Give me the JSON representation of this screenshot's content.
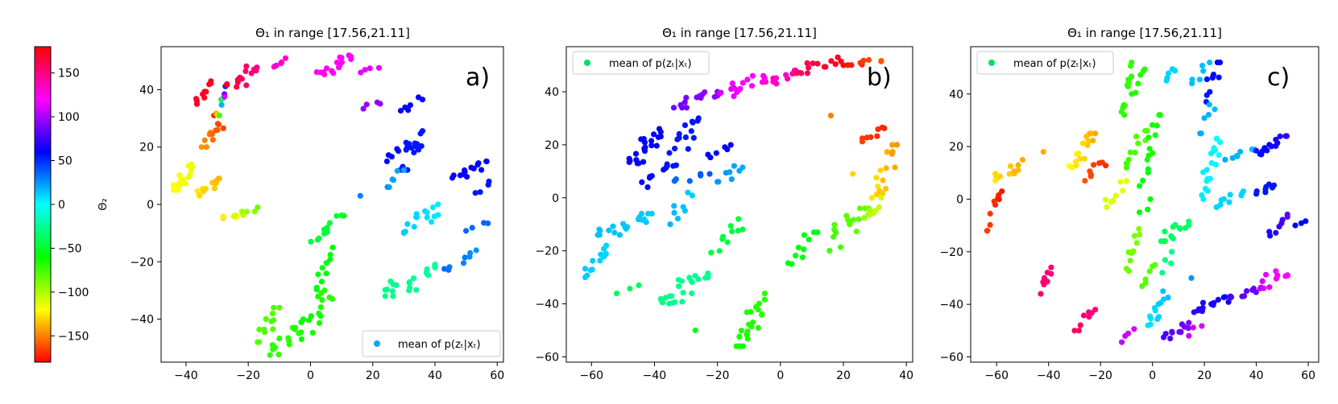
{
  "colorbar": {
    "label": "Θ₂",
    "min": -180,
    "max": 180,
    "ticks": [
      150,
      100,
      50,
      0,
      -50,
      -100,
      -150
    ],
    "tick_labels": [
      "150",
      "100",
      "50",
      "0",
      "−50",
      "−100",
      "−150"
    ],
    "colormap": "hsv"
  },
  "chart_data": [
    {
      "type": "scatter",
      "title_main": "Θ₁ in range [17.56,21.11]",
      "panel_label": "a)",
      "legend": "mean of p(zₜ|xₜ)",
      "legend_position": "bottom-right",
      "legend_color": "#00a8ff",
      "xlim": [
        -48,
        62
      ],
      "ylim": [
        -55,
        55
      ],
      "xticks": [
        -40,
        -20,
        0,
        20,
        40,
        60
      ],
      "xtick_labels": [
        "−40",
        "−20",
        "0",
        "20",
        "40",
        "60"
      ],
      "yticks": [
        -40,
        -20,
        0,
        20,
        40
      ],
      "ytick_labels": [
        "−40",
        "−20",
        "0",
        "20",
        "40"
      ],
      "clusters": [
        {
          "x0": -44,
          "x1": -38,
          "y0": 5,
          "y1": 14,
          "c0": -120,
          "c1": -115,
          "n": 16
        },
        {
          "x0": -38,
          "x1": -28,
          "y0": 3,
          "y1": 9,
          "c0": -125,
          "c1": -138,
          "n": 12
        },
        {
          "x0": -28,
          "x1": -17,
          "y0": -5,
          "y1": -1,
          "c0": -128,
          "c1": -85,
          "n": 10
        },
        {
          "x0": -35,
          "x1": -28,
          "y0": 20,
          "y1": 29,
          "c0": -145,
          "c1": -165,
          "n": 12
        },
        {
          "x0": -31,
          "x1": -26,
          "y0": 31,
          "y1": 42,
          "c0": -172,
          "c1": 178,
          "n": 12
        },
        {
          "x0": -37,
          "x1": -32,
          "y0": 35,
          "y1": 43,
          "c0": 172,
          "c1": 172,
          "n": 10
        },
        {
          "x0": -25,
          "x1": -16,
          "y0": 41,
          "y1": 49,
          "c0": 165,
          "c1": 148,
          "n": 12
        },
        {
          "x0": -12,
          "x1": -8,
          "y0": 48,
          "y1": 51,
          "c0": 132,
          "c1": 132,
          "n": 5
        },
        {
          "x0": 2,
          "x1": 13,
          "y0": 45,
          "y1": 52,
          "c0": 125,
          "c1": 118,
          "n": 16
        },
        {
          "x0": 16,
          "x1": 22,
          "y0": 46,
          "y1": 48,
          "c0": 115,
          "c1": 115,
          "n": 4
        },
        {
          "x0": 17,
          "x1": 23,
          "y0": 33,
          "y1": 36,
          "c0": 95,
          "c1": 95,
          "n": 4
        },
        {
          "x0": 29,
          "x1": 36,
          "y0": 31,
          "y1": 38,
          "c0": 62,
          "c1": 62,
          "n": 6
        },
        {
          "x0": 29,
          "x1": 36,
          "y0": 12,
          "y1": 26,
          "c0": 55,
          "c1": 55,
          "n": 18
        },
        {
          "x0": 24,
          "x1": 29,
          "y0": 15,
          "y1": 20,
          "c0": 58,
          "c1": 58,
          "n": 5
        },
        {
          "x0": 24,
          "x1": 30,
          "y0": 6,
          "y1": 12,
          "c0": 25,
          "c1": 20,
          "n": 6
        },
        {
          "x0": 30,
          "x1": 41,
          "y0": -10,
          "y1": 0,
          "c0": 12,
          "c1": 5,
          "n": 16
        },
        {
          "x0": 45,
          "x1": 57,
          "y0": 9,
          "y1": 15,
          "c0": 62,
          "c1": 60,
          "n": 14
        },
        {
          "x0": 53,
          "x1": 58,
          "y0": 4,
          "y1": 8,
          "c0": 55,
          "c1": 55,
          "n": 4
        },
        {
          "x0": 50,
          "x1": 57,
          "y0": -10,
          "y1": -6,
          "c0": 35,
          "c1": 35,
          "n": 4
        },
        {
          "x0": 43,
          "x1": 54,
          "y0": -23,
          "y1": -16,
          "c0": 35,
          "c1": 25,
          "n": 8
        },
        {
          "x0": 24,
          "x1": 40,
          "y0": -32,
          "y1": -21,
          "c0": -28,
          "c1": -22,
          "n": 22
        },
        {
          "x0": 0,
          "x1": 11,
          "y0": -13,
          "y1": -3,
          "c0": -45,
          "c1": -50,
          "n": 12
        },
        {
          "x0": 2,
          "x1": 8,
          "y0": -30,
          "y1": -15,
          "c0": -55,
          "c1": -60,
          "n": 10
        },
        {
          "x0": -3,
          "x1": 7,
          "y0": -47,
          "y1": -30,
          "c0": -60,
          "c1": -70,
          "n": 16
        },
        {
          "x0": -17,
          "x1": -10,
          "y0": -48,
          "y1": -36,
          "c0": -80,
          "c1": -78,
          "n": 12
        },
        {
          "x0": -13,
          "x1": -3,
          "y0": -53,
          "y1": -43,
          "c0": -72,
          "c1": -68,
          "n": 14
        },
        {
          "x0": 16,
          "x1": 16,
          "y0": 3,
          "y1": 3,
          "c0": 30,
          "c1": 30,
          "n": 1
        }
      ]
    },
    {
      "type": "scatter",
      "title_main": "Θ₁ in range [17.56,21.11]",
      "panel_label": "b)",
      "legend": "mean of p(zₜ|xₜ)",
      "legend_position": "top-left",
      "legend_color": "#00e060",
      "xlim": [
        -68,
        42
      ],
      "ylim": [
        -62,
        57
      ],
      "xticks": [
        -60,
        -40,
        -20,
        0,
        20,
        40
      ],
      "xtick_labels": [
        "−60",
        "−40",
        "−20",
        "0",
        "20",
        "40"
      ],
      "yticks": [
        -60,
        -40,
        -20,
        0,
        20,
        40
      ],
      "ytick_labels": [
        "−60",
        "−40",
        "−20",
        "0",
        "20",
        "40"
      ],
      "clusters": [
        {
          "x0": -34,
          "x1": -20,
          "y0": 34,
          "y1": 40,
          "c0": 85,
          "c1": 95,
          "n": 14
        },
        {
          "x0": -20,
          "x1": -5,
          "y0": 38,
          "y1": 46,
          "c0": 110,
          "c1": 125,
          "n": 16
        },
        {
          "x0": -5,
          "x1": 5,
          "y0": 43,
          "y1": 48,
          "c0": 130,
          "c1": 140,
          "n": 10
        },
        {
          "x0": 5,
          "x1": 20,
          "y0": 47,
          "y1": 53,
          "c0": 155,
          "c1": 175,
          "n": 14
        },
        {
          "x0": 20,
          "x1": 32,
          "y0": 50,
          "y1": 52,
          "c0": -178,
          "c1": -160,
          "n": 10
        },
        {
          "x0": -48,
          "x1": -38,
          "y0": 13,
          "y1": 26,
          "c0": 62,
          "c1": 60,
          "n": 22
        },
        {
          "x0": -44,
          "x1": -36,
          "y0": 4,
          "y1": 12,
          "c0": 58,
          "c1": 58,
          "n": 8
        },
        {
          "x0": -36,
          "x1": -26,
          "y0": 12,
          "y1": 30,
          "c0": 55,
          "c1": 55,
          "n": 18
        },
        {
          "x0": -23,
          "x1": -15,
          "y0": 15,
          "y1": 20,
          "c0": 60,
          "c1": 60,
          "n": 6
        },
        {
          "x0": -35,
          "x1": -22,
          "y0": 6,
          "y1": 9,
          "c0": 35,
          "c1": 40,
          "n": 6
        },
        {
          "x0": -20,
          "x1": -12,
          "y0": 6,
          "y1": 12,
          "c0": 25,
          "c1": 20,
          "n": 8
        },
        {
          "x0": -58,
          "x1": -40,
          "y0": -14,
          "y1": -6,
          "c0": 15,
          "c1": 12,
          "n": 20
        },
        {
          "x0": -62,
          "x1": -55,
          "y0": -30,
          "y1": -18,
          "c0": 12,
          "c1": 10,
          "n": 12
        },
        {
          "x0": -35,
          "x1": -28,
          "y0": -10,
          "y1": 2,
          "c0": 18,
          "c1": 12,
          "n": 8
        },
        {
          "x0": -38,
          "x1": -23,
          "y0": -42,
          "y1": -28,
          "c0": -28,
          "c1": -25,
          "n": 24
        },
        {
          "x0": -14,
          "x1": -5,
          "y0": -56,
          "y1": -36,
          "c0": -65,
          "c1": -70,
          "n": 22
        },
        {
          "x0": -22,
          "x1": -12,
          "y0": -22,
          "y1": -8,
          "c0": -45,
          "c1": -45,
          "n": 10
        },
        {
          "x0": 2,
          "x1": 12,
          "y0": -25,
          "y1": -13,
          "c0": -55,
          "c1": -55,
          "n": 10
        },
        {
          "x0": 15,
          "x1": 28,
          "y0": -20,
          "y1": -4,
          "c0": -75,
          "c1": -85,
          "n": 16
        },
        {
          "x0": 26,
          "x1": 32,
          "y0": -10,
          "y1": 0,
          "c0": -95,
          "c1": -110,
          "n": 8
        },
        {
          "x0": 29,
          "x1": 37,
          "y0": 0,
          "y1": 20,
          "c0": -125,
          "c1": -145,
          "n": 18
        },
        {
          "x0": 26,
          "x1": 33,
          "y0": 20,
          "y1": 27,
          "c0": -165,
          "c1": -172,
          "n": 8
        },
        {
          "x0": 16,
          "x1": 16,
          "y0": 31,
          "y1": 31,
          "c0": -150,
          "c1": -150,
          "n": 1
        },
        {
          "x0": 23,
          "x1": 23,
          "y0": 9,
          "y1": 9,
          "c0": -130,
          "c1": -130,
          "n": 1
        },
        {
          "x0": -52,
          "x1": -45,
          "y0": -37,
          "y1": -33,
          "c0": -40,
          "c1": -40,
          "n": 3
        },
        {
          "x0": -27,
          "x1": -27,
          "y0": -50,
          "y1": -50,
          "c0": -55,
          "c1": -55,
          "n": 1
        }
      ]
    },
    {
      "type": "scatter",
      "title_main": "Θ₁ in range [17.56,21.11]",
      "panel_label": "c)",
      "legend": "mean of p(zₜ|xₜ)",
      "legend_position": "top-left",
      "legend_color": "#00e060",
      "xlim": [
        -70,
        64
      ],
      "ylim": [
        -62,
        58
      ],
      "xticks": [
        -60,
        -40,
        -20,
        0,
        20,
        40,
        60
      ],
      "xtick_labels": [
        "−60",
        "−40",
        "−20",
        "0",
        "20",
        "40",
        "60"
      ],
      "yticks": [
        -60,
        -40,
        -20,
        0,
        20,
        40
      ],
      "ytick_labels": [
        "−60",
        "−40",
        "−20",
        "0",
        "20",
        "40"
      ],
      "clusters": [
        {
          "x0": -64,
          "x1": -58,
          "y0": -12,
          "y1": 3,
          "c0": -165,
          "c1": -175,
          "n": 10
        },
        {
          "x0": -62,
          "x1": -50,
          "y0": 5,
          "y1": 15,
          "c0": -125,
          "c1": -140,
          "n": 12
        },
        {
          "x0": -32,
          "x1": -22,
          "y0": 12,
          "y1": 25,
          "c0": -120,
          "c1": -140,
          "n": 16
        },
        {
          "x0": -26,
          "x1": -18,
          "y0": 7,
          "y1": 14,
          "c0": -160,
          "c1": -170,
          "n": 8
        },
        {
          "x0": -18,
          "x1": -10,
          "y0": -3,
          "y1": 8,
          "c0": -110,
          "c1": -115,
          "n": 8
        },
        {
          "x0": -12,
          "x1": -8,
          "y0": 32,
          "y1": 52,
          "c0": -70,
          "c1": -72,
          "n": 12
        },
        {
          "x0": -8,
          "x1": -3,
          "y0": 40,
          "y1": 50,
          "c0": -68,
          "c1": -68,
          "n": 6
        },
        {
          "x0": -10,
          "x1": -2,
          "y0": 12,
          "y1": 26,
          "c0": -75,
          "c1": -80,
          "n": 10
        },
        {
          "x0": -2,
          "x1": 3,
          "y0": 15,
          "y1": 32,
          "c0": -65,
          "c1": -65,
          "n": 10
        },
        {
          "x0": -5,
          "x1": -1,
          "y0": 5,
          "y1": 12,
          "c0": -55,
          "c1": -55,
          "n": 4
        },
        {
          "x0": -5,
          "x1": 0,
          "y0": -5,
          "y1": 0,
          "c0": -60,
          "c1": -60,
          "n": 3
        },
        {
          "x0": -10,
          "x1": -5,
          "y0": -28,
          "y1": -10,
          "c0": -85,
          "c1": -90,
          "n": 10
        },
        {
          "x0": -4,
          "x1": 1,
          "y0": -35,
          "y1": -25,
          "c0": -80,
          "c1": -80,
          "n": 6
        },
        {
          "x0": 3,
          "x1": 14,
          "y0": -16,
          "y1": -8,
          "c0": -40,
          "c1": -35,
          "n": 14
        },
        {
          "x0": 3,
          "x1": 8,
          "y0": -28,
          "y1": -20,
          "c0": -30,
          "c1": -30,
          "n": 4
        },
        {
          "x0": -2,
          "x1": 6,
          "y0": -48,
          "y1": -35,
          "c0": 5,
          "c1": 15,
          "n": 14
        },
        {
          "x0": 4,
          "x1": 14,
          "y0": -53,
          "y1": -47,
          "c0": 75,
          "c1": 90,
          "n": 12
        },
        {
          "x0": -12,
          "x1": -7,
          "y0": -55,
          "y1": -48,
          "c0": 105,
          "c1": 110,
          "n": 4
        },
        {
          "x0": 14,
          "x1": 19,
          "y0": -52,
          "y1": -48,
          "c0": 108,
          "c1": 112,
          "n": 3
        },
        {
          "x0": 5,
          "x1": 9,
          "y0": 45,
          "y1": 50,
          "c0": 10,
          "c1": 10,
          "n": 6
        },
        {
          "x0": 15,
          "x1": 22,
          "y0": 44,
          "y1": 52,
          "c0": 15,
          "c1": 15,
          "n": 6
        },
        {
          "x0": 20,
          "x1": 26,
          "y0": 37,
          "y1": 52,
          "c0": 55,
          "c1": 60,
          "n": 10
        },
        {
          "x0": 18,
          "x1": 24,
          "y0": 25,
          "y1": 36,
          "c0": 20,
          "c1": 15,
          "n": 6
        },
        {
          "x0": 19,
          "x1": 26,
          "y0": 0,
          "y1": 23,
          "c0": 5,
          "c1": 0,
          "n": 20
        },
        {
          "x0": 24,
          "x1": 35,
          "y0": -3,
          "y1": 3,
          "c0": 10,
          "c1": 10,
          "n": 10
        },
        {
          "x0": 28,
          "x1": 40,
          "y0": 15,
          "y1": 20,
          "c0": 20,
          "c1": 15,
          "n": 8
        },
        {
          "x0": 39,
          "x1": 52,
          "y0": 17,
          "y1": 24,
          "c0": 55,
          "c1": 70,
          "n": 14
        },
        {
          "x0": 40,
          "x1": 48,
          "y0": 2,
          "y1": 6,
          "c0": 55,
          "c1": 55,
          "n": 8
        },
        {
          "x0": 45,
          "x1": 52,
          "y0": -14,
          "y1": -5,
          "c0": 65,
          "c1": 80,
          "n": 8
        },
        {
          "x0": 55,
          "x1": 59,
          "y0": -10,
          "y1": -8,
          "c0": 60,
          "c1": 60,
          "n": 3
        },
        {
          "x0": 16,
          "x1": 30,
          "y0": -43,
          "y1": -37,
          "c0": 70,
          "c1": 62,
          "n": 14
        },
        {
          "x0": 30,
          "x1": 40,
          "y0": -38,
          "y1": -34,
          "c0": 78,
          "c1": 85,
          "n": 8
        },
        {
          "x0": 40,
          "x1": 52,
          "y0": -34,
          "y1": -27,
          "c0": 105,
          "c1": 125,
          "n": 12
        },
        {
          "x0": -43,
          "x1": -39,
          "y0": -36,
          "y1": -25,
          "c0": 155,
          "c1": 152,
          "n": 8
        },
        {
          "x0": -30,
          "x1": -22,
          "y0": -50,
          "y1": -42,
          "c0": 158,
          "c1": 150,
          "n": 8
        },
        {
          "x0": 15,
          "x1": 15,
          "y0": -30,
          "y1": -30,
          "c0": 25,
          "c1": 25,
          "n": 1
        },
        {
          "x0": -42,
          "x1": -42,
          "y0": 18,
          "y1": 18,
          "c0": -140,
          "c1": -140,
          "n": 1
        }
      ]
    }
  ]
}
